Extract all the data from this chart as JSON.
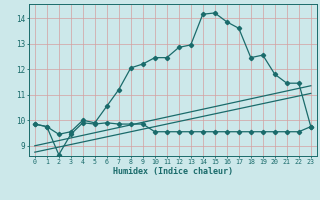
{
  "xlabel": "Humidex (Indice chaleur)",
  "bg_color": "#cce8ea",
  "grid_color": "#aed4d6",
  "line_color": "#1a6b6b",
  "xlim": [
    -0.5,
    23.5
  ],
  "ylim": [
    8.6,
    14.55
  ],
  "xticks": [
    0,
    1,
    2,
    3,
    4,
    5,
    6,
    7,
    8,
    9,
    10,
    11,
    12,
    13,
    14,
    15,
    16,
    17,
    18,
    19,
    20,
    21,
    22,
    23
  ],
  "yticks": [
    9,
    10,
    11,
    12,
    13,
    14
  ],
  "curve1_x": [
    0,
    1,
    2,
    3,
    4,
    5,
    6,
    7,
    8,
    9,
    10,
    11,
    12,
    13,
    14,
    15,
    16,
    17,
    18,
    19,
    20,
    21,
    22,
    23
  ],
  "curve1_y": [
    9.85,
    9.75,
    9.45,
    9.55,
    10.0,
    9.9,
    10.55,
    11.2,
    12.05,
    12.2,
    12.45,
    12.45,
    12.85,
    12.95,
    14.15,
    14.2,
    13.85,
    13.6,
    12.45,
    12.55,
    11.8,
    11.45,
    11.45,
    9.75
  ],
  "curve2_x": [
    0,
    1,
    2,
    3,
    4,
    5,
    6,
    7,
    8,
    9,
    10,
    11,
    12,
    13,
    14,
    15,
    16,
    17,
    18,
    19,
    20,
    21,
    22,
    23
  ],
  "curve2_y": [
    9.85,
    9.75,
    8.65,
    9.45,
    9.9,
    9.85,
    9.9,
    9.85,
    9.85,
    9.85,
    9.55,
    9.55,
    9.55,
    9.55,
    9.55,
    9.55,
    9.55,
    9.55,
    9.55,
    9.55,
    9.55,
    9.55,
    9.55,
    9.75
  ],
  "curve3_x": [
    0,
    23
  ],
  "curve3_y": [
    8.75,
    11.05
  ],
  "curve4_x": [
    0,
    23
  ],
  "curve4_y": [
    9.0,
    11.35
  ]
}
